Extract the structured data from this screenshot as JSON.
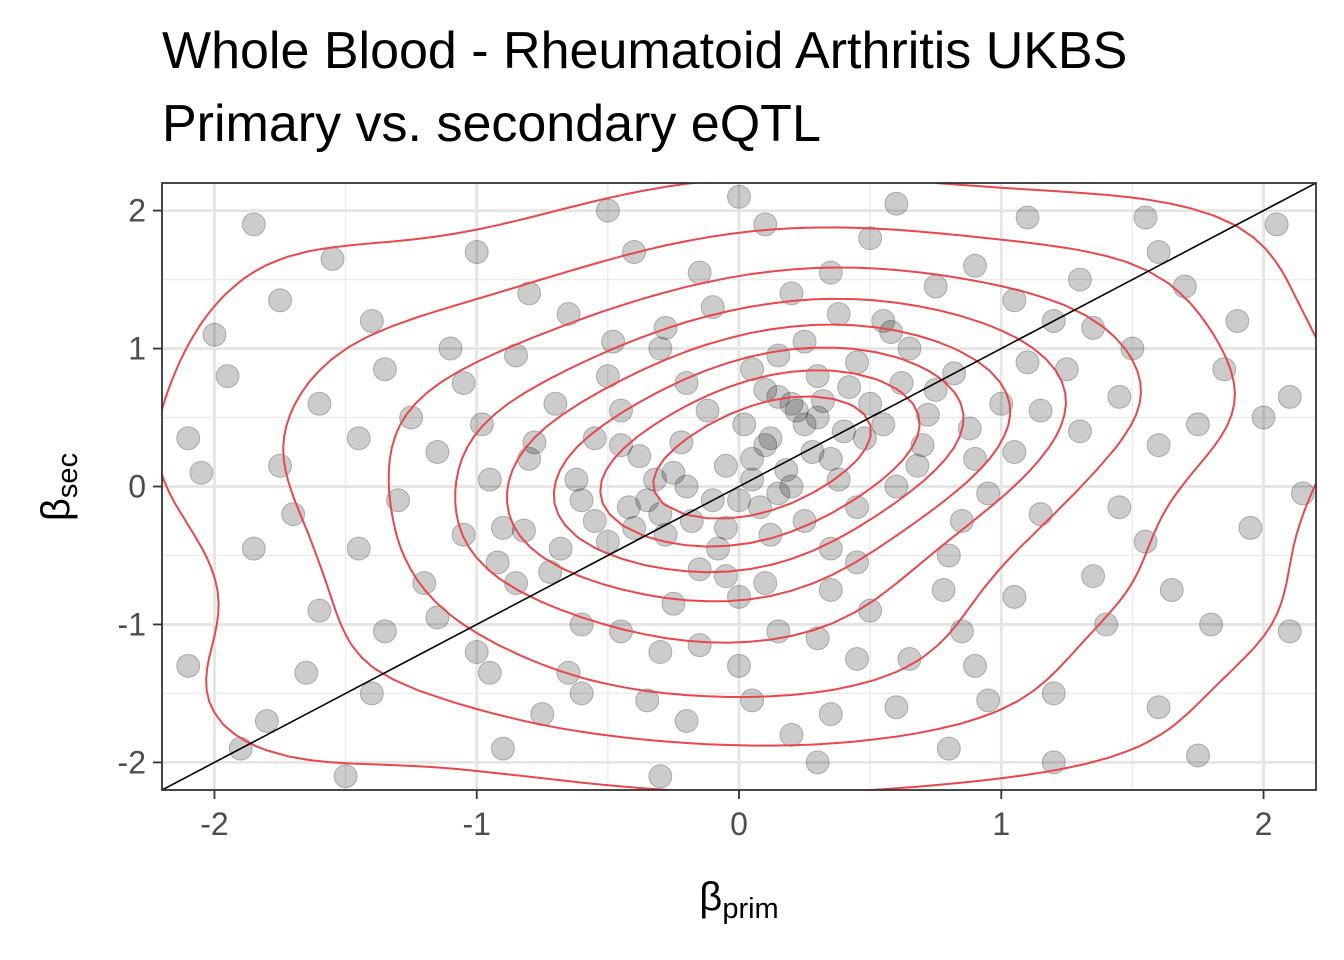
{
  "chart_data": {
    "type": "scatter",
    "title": "Whole Blood - Rheumatoid Arthritis UKBS",
    "subtitle": "Primary vs. secondary eQTL",
    "xlabel": {
      "base": "β",
      "sub": "prim"
    },
    "ylabel": {
      "base": "β",
      "sub": "sec"
    },
    "xlim": [
      -2.2,
      2.2
    ],
    "ylim": [
      -2.2,
      2.2
    ],
    "x_ticks": [
      -2,
      -1,
      0,
      1,
      2
    ],
    "y_ticks": [
      -2,
      -1,
      0,
      1,
      2
    ],
    "x_tick_labels": [
      "-2",
      "-1",
      "0",
      "1",
      "2"
    ],
    "y_tick_labels": [
      "-2",
      "-1",
      "0",
      "1",
      "2"
    ],
    "grid": true,
    "legend": "none",
    "reference_line": {
      "slope": 1,
      "intercept": 0,
      "color": "#000000"
    },
    "density_contours": {
      "color": "#e8474c",
      "levels": 8
    },
    "point_color": "#000000",
    "point_opacity": 0.2,
    "points": [
      [
        0.1,
        0.7
      ],
      [
        0.2,
        0.6
      ],
      [
        0.3,
        0.5
      ],
      [
        0.15,
        0.65
      ],
      [
        0.25,
        0.45
      ],
      [
        0.0,
        -0.1
      ],
      [
        -0.1,
        -0.1
      ],
      [
        -0.2,
        0.0
      ],
      [
        -0.3,
        -0.2
      ],
      [
        -0.25,
        0.1
      ],
      [
        0.05,
        0.2
      ],
      [
        0.1,
        0.3
      ],
      [
        0.4,
        0.4
      ],
      [
        0.35,
        0.2
      ],
      [
        -0.4,
        -0.3
      ],
      [
        -0.35,
        -0.1
      ],
      [
        0.2,
        0.0
      ],
      [
        0.15,
        -0.05
      ],
      [
        -0.05,
        -0.3
      ],
      [
        0.3,
        0.8
      ],
      [
        0.45,
        0.9
      ],
      [
        0.5,
        0.6
      ],
      [
        -0.15,
        -0.6
      ],
      [
        0.0,
        -0.8
      ],
      [
        0.1,
        -0.7
      ],
      [
        -0.5,
        -0.4
      ],
      [
        -0.6,
        -0.1
      ],
      [
        -0.45,
        0.3
      ],
      [
        0.6,
        0.0
      ],
      [
        0.7,
        0.3
      ],
      [
        0.75,
        0.7
      ],
      [
        0.65,
        1.0
      ],
      [
        0.55,
        1.2
      ],
      [
        0.2,
        1.4
      ],
      [
        -0.1,
        1.3
      ],
      [
        -0.3,
        1.0
      ],
      [
        -0.5,
        0.8
      ],
      [
        -0.7,
        0.6
      ],
      [
        -0.8,
        0.2
      ],
      [
        -0.9,
        -0.3
      ],
      [
        -0.85,
        -0.7
      ],
      [
        -0.6,
        -1.0
      ],
      [
        -0.3,
        -1.2
      ],
      [
        0.0,
        -1.3
      ],
      [
        0.3,
        -1.1
      ],
      [
        0.5,
        -0.9
      ],
      [
        0.8,
        -0.5
      ],
      [
        0.9,
        0.2
      ],
      [
        1.0,
        0.6
      ],
      [
        1.1,
        0.9
      ],
      [
        1.2,
        1.2
      ],
      [
        1.3,
        0.4
      ],
      [
        1.15,
        -0.2
      ],
      [
        1.05,
        -0.8
      ],
      [
        0.9,
        -1.3
      ],
      [
        0.6,
        -1.6
      ],
      [
        0.2,
        -1.8
      ],
      [
        -0.2,
        -1.7
      ],
      [
        -0.6,
        -1.5
      ],
      [
        -1.0,
        -1.2
      ],
      [
        -1.2,
        -0.7
      ],
      [
        -1.3,
        -0.1
      ],
      [
        -1.25,
        0.5
      ],
      [
        -1.1,
        1.0
      ],
      [
        -0.8,
        1.4
      ],
      [
        -0.4,
        1.7
      ],
      [
        0.1,
        1.9
      ],
      [
        0.5,
        1.8
      ],
      [
        0.9,
        1.6
      ],
      [
        1.3,
        1.5
      ],
      [
        1.5,
        1.0
      ],
      [
        1.6,
        0.3
      ],
      [
        1.55,
        -0.4
      ],
      [
        1.4,
        -1.0
      ],
      [
        1.2,
        -1.5
      ],
      [
        0.8,
        -1.9
      ],
      [
        0.3,
        -2.0
      ],
      [
        -0.3,
        -2.1
      ],
      [
        -0.9,
        -1.9
      ],
      [
        -1.4,
        -1.5
      ],
      [
        -1.6,
        -0.9
      ],
      [
        -1.7,
        -0.2
      ],
      [
        -1.6,
        0.6
      ],
      [
        -1.4,
        1.2
      ],
      [
        -1.0,
        1.7
      ],
      [
        -0.5,
        2.0
      ],
      [
        0.0,
        2.1
      ],
      [
        0.6,
        2.05
      ],
      [
        1.1,
        1.95
      ],
      [
        1.6,
        1.7
      ],
      [
        1.9,
        1.2
      ],
      [
        2.0,
        0.5
      ],
      [
        1.95,
        -0.3
      ],
      [
        1.8,
        -1.0
      ],
      [
        1.6,
        -1.6
      ],
      [
        1.2,
        -2.0
      ],
      [
        -1.9,
        -1.9
      ],
      [
        -2.1,
        -1.3
      ],
      [
        -2.05,
        0.1
      ],
      [
        -1.95,
        0.8
      ],
      [
        -1.85,
        1.9
      ],
      [
        -2.0,
        1.1
      ],
      [
        2.05,
        1.9
      ],
      [
        2.1,
        -1.05
      ],
      [
        2.15,
        -0.05
      ],
      [
        1.75,
        -1.95
      ],
      [
        -1.5,
        -2.1
      ],
      [
        -1.8,
        -1.7
      ],
      [
        -2.1,
        0.35
      ],
      [
        2.1,
        0.65
      ],
      [
        0.05,
        0.05
      ],
      [
        -0.05,
        0.15
      ],
      [
        0.12,
        0.35
      ],
      [
        0.22,
        0.55
      ],
      [
        0.28,
        0.25
      ],
      [
        -0.18,
        -0.25
      ],
      [
        -0.28,
        -0.35
      ],
      [
        -0.08,
        -0.45
      ],
      [
        0.08,
        -0.15
      ],
      [
        0.18,
        0.12
      ],
      [
        0.32,
        0.62
      ],
      [
        0.42,
        0.72
      ],
      [
        -0.32,
        0.05
      ],
      [
        -0.42,
        -0.15
      ],
      [
        0.38,
        0.05
      ],
      [
        0.48,
        0.35
      ],
      [
        -0.22,
        0.32
      ],
      [
        -0.38,
        0.22
      ],
      [
        0.02,
        0.45
      ],
      [
        0.12,
        -0.35
      ],
      [
        0.55,
        0.45
      ],
      [
        0.62,
        0.75
      ],
      [
        0.68,
        0.15
      ],
      [
        -0.55,
        -0.25
      ],
      [
        -0.62,
        0.05
      ],
      [
        -0.68,
        -0.45
      ],
      [
        -0.12,
        0.55
      ],
      [
        -0.2,
        0.75
      ],
      [
        0.25,
        -0.25
      ],
      [
        0.35,
        -0.45
      ],
      [
        0.45,
        -0.15
      ],
      [
        -0.45,
        0.55
      ],
      [
        -0.55,
        0.35
      ],
      [
        0.05,
        0.85
      ],
      [
        0.15,
        0.95
      ],
      [
        0.25,
        1.05
      ],
      [
        -0.05,
        -0.65
      ],
      [
        -0.25,
        -0.85
      ],
      [
        0.35,
        -0.75
      ],
      [
        0.45,
        -0.55
      ],
      [
        0.72,
        0.52
      ],
      [
        0.82,
        0.82
      ],
      [
        0.88,
        0.42
      ],
      [
        -0.72,
        -0.62
      ],
      [
        -0.82,
        -0.32
      ],
      [
        -0.78,
        0.32
      ],
      [
        0.58,
        1.12
      ],
      [
        0.38,
        1.25
      ],
      [
        -0.28,
        1.15
      ],
      [
        -0.48,
        1.05
      ],
      [
        0.85,
        -0.25
      ],
      [
        0.95,
        -0.05
      ],
      [
        0.78,
        -0.75
      ],
      [
        -0.95,
        0.05
      ],
      [
        -0.98,
        0.45
      ],
      [
        -0.92,
        -0.55
      ],
      [
        0.15,
        -1.05
      ],
      [
        -0.15,
        -1.15
      ],
      [
        0.45,
        -1.25
      ],
      [
        -0.45,
        -1.05
      ],
      [
        1.05,
        0.25
      ],
      [
        1.15,
        0.55
      ],
      [
        1.25,
        0.85
      ],
      [
        1.35,
        1.15
      ],
      [
        1.05,
        1.35
      ],
      [
        -1.05,
        -0.35
      ],
      [
        -1.15,
        0.25
      ],
      [
        -1.05,
        0.75
      ],
      [
        -1.15,
        -0.95
      ],
      [
        -0.95,
        -1.35
      ],
      [
        0.65,
        -1.25
      ],
      [
        0.85,
        -1.05
      ],
      [
        0.95,
        -1.55
      ],
      [
        -0.65,
        -1.35
      ],
      [
        -0.75,
        -1.65
      ],
      [
        -0.35,
        -1.55
      ],
      [
        0.05,
        -1.55
      ],
      [
        0.35,
        -1.65
      ],
      [
        0.75,
        1.45
      ],
      [
        0.35,
        1.55
      ],
      [
        -0.15,
        1.55
      ],
      [
        -0.65,
        1.25
      ],
      [
        -0.85,
        0.95
      ],
      [
        1.45,
        0.65
      ],
      [
        1.45,
        -0.15
      ],
      [
        1.35,
        -0.65
      ],
      [
        -1.35,
        0.85
      ],
      [
        -1.45,
        0.35
      ],
      [
        -1.45,
        -0.45
      ],
      [
        -1.35,
        -1.05
      ],
      [
        1.75,
        0.45
      ],
      [
        1.85,
        0.85
      ],
      [
        1.7,
        1.45
      ],
      [
        1.55,
        1.95
      ],
      [
        -1.75,
        0.15
      ],
      [
        -1.85,
        -0.45
      ],
      [
        -1.75,
        1.35
      ],
      [
        -1.55,
        1.65
      ],
      [
        1.65,
        -0.75
      ],
      [
        -1.65,
        -1.35
      ]
    ]
  }
}
